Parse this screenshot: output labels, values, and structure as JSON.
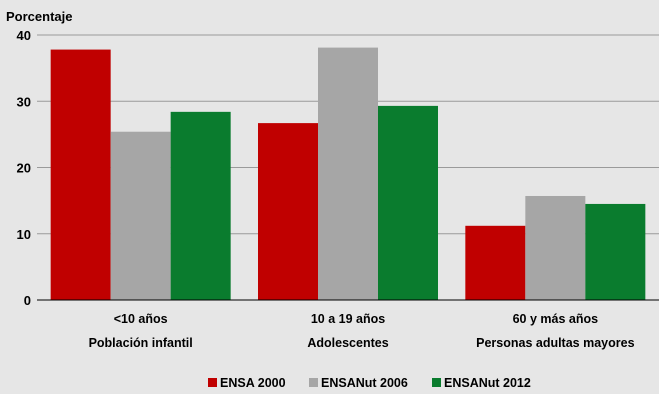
{
  "chart_data": {
    "type": "bar",
    "ylabel": "Porcentaje",
    "ylim": [
      0,
      40
    ],
    "yticks": [
      0,
      10,
      20,
      30,
      40
    ],
    "grid": true,
    "legend_position": "bottom",
    "categories": [
      {
        "line1": "<10 años",
        "line2": "Población infantil"
      },
      {
        "line1": "10 a 19 años",
        "line2": "Adolescentes"
      },
      {
        "line1": "60 y más años",
        "line2": "Personas adultas mayores"
      }
    ],
    "series": [
      {
        "name": "ENSA 2000",
        "color": "#c00000",
        "values": [
          37.8,
          26.7,
          11.2
        ]
      },
      {
        "name": "ENSANut 2006",
        "color": "#a6a6a6",
        "values": [
          25.4,
          38.1,
          15.7
        ]
      },
      {
        "name": "ENSANut 2012",
        "color": "#0a7c2e",
        "values": [
          28.4,
          29.3,
          14.5
        ]
      }
    ]
  }
}
